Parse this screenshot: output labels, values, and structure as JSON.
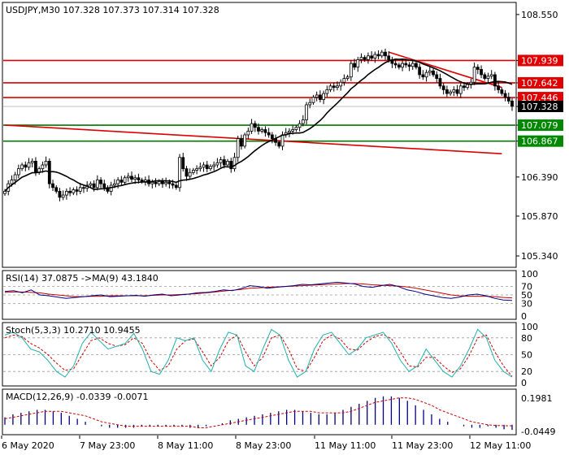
{
  "colors": {
    "bg": "#ffffff",
    "frame": "#000000",
    "support_line": "#007700",
    "resistance_line": "#dd0000",
    "trend_line": "#dd0000",
    "ma": "#000000",
    "candle": "#000000",
    "current_price_bg": "#000000",
    "current_price_fg": "#ffffff",
    "red_label_bg": "#e00000",
    "green_label_bg": "#008800",
    "rsi_line": "#000080",
    "rsi_ma": "#cc0000",
    "stoch_main": "#20b2aa",
    "stoch_signal": "#cc0000",
    "macd_hist": "#000080",
    "macd_signal": "#cc0000",
    "grid_dash": "#999999"
  },
  "chart_data": [
    {
      "type": "candlestick",
      "title": "USDJPY,M30  107.328 107.373 107.314 107.328",
      "symbol": "USDJPY",
      "timeframe": "M30",
      "ohlc_header": {
        "open": 107.328,
        "high": 107.373,
        "low": 107.314,
        "close": 107.328
      },
      "ylim": [
        105.2,
        108.7
      ],
      "y_ticks": [
        "108.550",
        "107.939",
        "107.642",
        "107.446",
        "107.328",
        "107.079",
        "106.867",
        "106.390",
        "105.870",
        "105.340"
      ],
      "x_ticks": [
        "6 May 2020",
        "7 May 23:00",
        "8 May 11:00",
        "8 May 23:00",
        "11 May 11:00",
        "11 May 23:00",
        "12 May 11:00"
      ],
      "horizontal_levels": [
        {
          "label": "107.939",
          "value": 107.939,
          "color": "red"
        },
        {
          "label": "107.642",
          "value": 107.642,
          "color": "red"
        },
        {
          "label": "107.446",
          "value": 107.446,
          "color": "red"
        },
        {
          "label": "107.079",
          "value": 107.079,
          "color": "green"
        },
        {
          "label": "106.867",
          "value": 106.867,
          "color": "green"
        }
      ],
      "current_price": "107.328",
      "close": [
        106.2,
        106.3,
        106.35,
        106.42,
        106.5,
        106.55,
        106.52,
        106.58,
        106.6,
        106.45,
        106.5,
        106.55,
        106.6,
        106.3,
        106.25,
        106.2,
        106.12,
        106.15,
        106.2,
        106.18,
        106.22,
        106.2,
        106.25,
        106.24,
        106.28,
        106.3,
        106.25,
        106.35,
        106.3,
        106.25,
        106.2,
        106.28,
        106.3,
        106.35,
        106.32,
        106.38,
        106.4,
        106.36,
        106.38,
        106.35,
        106.33,
        106.35,
        106.3,
        106.32,
        106.3,
        106.33,
        106.3,
        106.32,
        106.3,
        106.28,
        106.25,
        106.65,
        106.5,
        106.4,
        106.45,
        106.48,
        106.5,
        106.52,
        106.55,
        106.5,
        106.53,
        106.55,
        106.58,
        106.62,
        106.55,
        106.6,
        106.5,
        106.65,
        106.9,
        106.8,
        106.95,
        107.0,
        107.1,
        107.05,
        107.0,
        107.02,
        106.98,
        106.95,
        106.9,
        106.85,
        106.8,
        106.95,
        106.98,
        107.0,
        107.02,
        107.05,
        107.1,
        107.15,
        107.35,
        107.38,
        107.45,
        107.48,
        107.42,
        107.5,
        107.55,
        107.6,
        107.58,
        107.6,
        107.65,
        107.7,
        107.72,
        107.9,
        107.85,
        107.95,
        107.98,
        107.95,
        108.0,
        107.97,
        108.02,
        108.0,
        108.05,
        108.0,
        107.95,
        107.9,
        107.88,
        107.85,
        107.9,
        107.88,
        107.86,
        107.9,
        107.85,
        107.75,
        107.72,
        107.78,
        107.8,
        107.75,
        107.7,
        107.6,
        107.55,
        107.5,
        107.52,
        107.55,
        107.5,
        107.6,
        107.58,
        107.62,
        107.65,
        107.85,
        107.82,
        107.75,
        107.7,
        107.73,
        107.75,
        107.6,
        107.55,
        107.5,
        107.45,
        107.4,
        107.33
      ],
      "series": [
        {
          "name": "MA",
          "type": "line"
        }
      ],
      "trend_lines": [
        {
          "from": [
            0,
            107.08
          ],
          "to": [
            145,
            106.7
          ]
        },
        {
          "from": [
            112,
            108.05
          ],
          "to": [
            145,
            107.58
          ]
        }
      ]
    },
    {
      "type": "line",
      "title": "RSI(14) 37.0875  ->MA(9) 43.1840",
      "ylim": [
        0,
        100
      ],
      "y_ticks": [
        "100",
        "70",
        "50",
        "30",
        "0"
      ],
      "series": [
        {
          "name": "RSI(14)",
          "last": 37.0875,
          "values": [
            58,
            60,
            55,
            62,
            50,
            48,
            45,
            42,
            44,
            46,
            48,
            50,
            46,
            47,
            48,
            49,
            47,
            50,
            52,
            48,
            50,
            52,
            55,
            56,
            58,
            62,
            60,
            65,
            72,
            70,
            66,
            68,
            70,
            72,
            75,
            74,
            76,
            78,
            80,
            78,
            76,
            70,
            68,
            72,
            75,
            70,
            62,
            58,
            52,
            48,
            44,
            42,
            45,
            50,
            52,
            48,
            42,
            38,
            37
          ]
        },
        {
          "name": "MA(9)",
          "last": 43.184,
          "values": [
            56,
            57,
            57,
            56,
            55,
            52,
            50,
            48,
            46,
            46,
            47,
            47,
            48,
            48,
            48,
            48,
            48,
            49,
            50,
            50,
            51,
            52,
            53,
            55,
            57,
            59,
            61,
            63,
            66,
            67,
            68,
            69,
            70,
            71,
            72,
            73,
            74,
            75,
            76,
            77,
            77,
            76,
            74,
            73,
            72,
            71,
            69,
            66,
            62,
            58,
            54,
            50,
            48,
            47,
            47,
            47,
            46,
            44,
            43
          ]
        }
      ]
    },
    {
      "type": "line",
      "title": "Stoch(5,3,3) 10.2710 10.9455",
      "ylim": [
        0,
        100
      ],
      "y_ticks": [
        "100",
        "80",
        "50",
        "20",
        "0"
      ],
      "series": [
        {
          "name": "%K",
          "last": 10.271,
          "values": [
            85,
            90,
            80,
            60,
            55,
            40,
            20,
            10,
            30,
            70,
            90,
            75,
            60,
            65,
            70,
            88,
            60,
            20,
            15,
            40,
            80,
            75,
            80,
            40,
            20,
            60,
            90,
            85,
            30,
            20,
            60,
            95,
            85,
            40,
            10,
            20,
            60,
            85,
            90,
            70,
            50,
            60,
            80,
            85,
            90,
            70,
            40,
            20,
            30,
            60,
            40,
            20,
            10,
            30,
            60,
            95,
            80,
            40,
            20,
            10
          ]
        },
        {
          "name": "%D",
          "last": 10.9455,
          "values": [
            80,
            85,
            82,
            70,
            62,
            50,
            35,
            22,
            25,
            50,
            75,
            80,
            70,
            65,
            68,
            80,
            70,
            40,
            22,
            30,
            60,
            75,
            78,
            55,
            30,
            45,
            75,
            85,
            55,
            30,
            45,
            80,
            85,
            60,
            25,
            20,
            45,
            75,
            85,
            78,
            60,
            58,
            72,
            82,
            86,
            78,
            55,
            30,
            28,
            45,
            45,
            30,
            18,
            25,
            48,
            80,
            85,
            55,
            30,
            11
          ]
        }
      ]
    },
    {
      "type": "bar",
      "title": "MACD(12,26,9) -0.0339 -0.0071",
      "ylim": [
        -0.05,
        0.2
      ],
      "y_ticks": [
        "0.1981",
        "-0.0449"
      ],
      "series": [
        {
          "name": "MACD",
          "last": -0.0339,
          "values": [
            0.05,
            0.07,
            0.08,
            0.09,
            0.1,
            0.1,
            0.09,
            0.08,
            0.06,
            0.04,
            0.02,
            0.0,
            -0.01,
            -0.02,
            -0.02,
            -0.02,
            -0.02,
            -0.01,
            -0.01,
            -0.01,
            -0.01,
            -0.01,
            -0.01,
            -0.02,
            -0.02,
            -0.01,
            0.0,
            0.01,
            0.03,
            0.04,
            0.05,
            0.06,
            0.07,
            0.08,
            0.09,
            0.1,
            0.1,
            0.09,
            0.08,
            0.07,
            0.07,
            0.08,
            0.1,
            0.12,
            0.14,
            0.16,
            0.18,
            0.19,
            0.19,
            0.18,
            0.16,
            0.13,
            0.1,
            0.07,
            0.04,
            0.02,
            0.0,
            -0.01,
            -0.02,
            -0.02,
            -0.01,
            -0.02,
            -0.03,
            -0.034
          ]
        },
        {
          "name": "Signal",
          "last": -0.0071,
          "values": [
            0.04,
            0.05,
            0.06,
            0.07,
            0.08,
            0.09,
            0.09,
            0.09,
            0.08,
            0.07,
            0.06,
            0.04,
            0.02,
            0.01,
            0.0,
            -0.01,
            -0.01,
            -0.01,
            -0.01,
            -0.01,
            -0.01,
            -0.01,
            -0.01,
            -0.01,
            -0.02,
            -0.02,
            -0.01,
            0.0,
            0.01,
            0.02,
            0.03,
            0.04,
            0.05,
            0.06,
            0.07,
            0.08,
            0.09,
            0.09,
            0.09,
            0.08,
            0.08,
            0.08,
            0.08,
            0.09,
            0.11,
            0.13,
            0.15,
            0.16,
            0.17,
            0.18,
            0.18,
            0.17,
            0.15,
            0.13,
            0.1,
            0.08,
            0.06,
            0.04,
            0.02,
            0.01,
            0.0,
            -0.005,
            -0.006,
            -0.007
          ]
        }
      ]
    }
  ]
}
